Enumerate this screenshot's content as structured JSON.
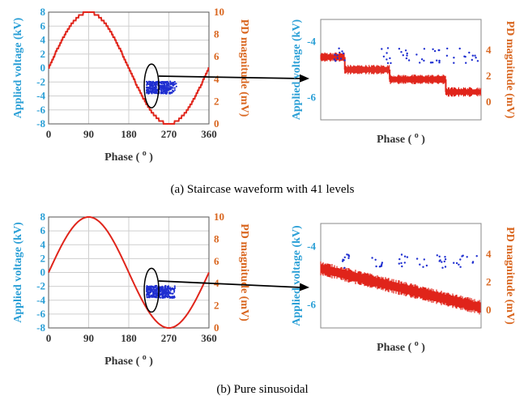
{
  "colors": {
    "voltage": "#e0251b",
    "pd": "#1f2fd0",
    "left_axis": "#2a9fd6",
    "right_axis": "#d9661f",
    "grid": "#cfcfcf",
    "arrow": "#000000"
  },
  "chart_data": [
    {
      "panel": "a",
      "type": "line",
      "caption": "(a) Staircase waveform with 41 levels",
      "xlabel": "Phase ( o )",
      "ylabel_left": "Applied voltage (kV)",
      "ylabel_right": "PD magnitude (mV)",
      "xlim": [
        0,
        360
      ],
      "ylim_left": [
        -8,
        8
      ],
      "ylim_right": [
        0,
        10
      ],
      "x_ticks": [
        "0",
        "90",
        "180",
        "270",
        "360"
      ],
      "y_left_ticks": [
        "8",
        "6",
        "4",
        "2",
        "0",
        "-2",
        "-4",
        "-6",
        "-8"
      ],
      "y_right_ticks": [
        "10",
        "8",
        "6",
        "4",
        "2",
        "0"
      ],
      "grid": true,
      "series": [
        {
          "kind": "staircase-sine",
          "amplitude_kv": 8,
          "levels": 41
        },
        {
          "kind": "pd-scatter",
          "phase_range": [
            220,
            290
          ],
          "magnitude_range_mv": [
            2.7,
            3.8
          ]
        }
      ],
      "zoom": {
        "ylim_left": [
          -6.8,
          -3.2
        ],
        "y_left_ticks": [
          "-4",
          "-6"
        ],
        "y_right_ticks": [
          "4",
          "2",
          "0"
        ],
        "xlabel": "Phase ( o )",
        "ylabel_left": "Applied voltage (kV)",
        "ylabel_right": "PD magnitude (mV)",
        "voltage_steps": [
          {
            "x_frac": [
              0.0,
              0.15
            ],
            "voltage_kv": -4.55
          },
          {
            "x_frac": [
              0.15,
              0.43
            ],
            "voltage_kv": -5.0
          },
          {
            "x_frac": [
              0.43,
              0.78
            ],
            "voltage_kv": -5.35
          },
          {
            "x_frac": [
              0.78,
              1.0
            ],
            "voltage_kv": -5.8
          }
        ],
        "pd_cluster_mv": [
          3.0,
          4.2
        ]
      }
    },
    {
      "panel": "b",
      "type": "line",
      "caption": "(b) Pure sinusoidal",
      "xlabel": "Phase ( o )",
      "ylabel_left": "Applied voltage (kV)",
      "ylabel_right": "PD magnitude (mV)",
      "xlim": [
        0,
        360
      ],
      "ylim_left": [
        -8,
        8
      ],
      "ylim_right": [
        0,
        10
      ],
      "x_ticks": [
        "0",
        "90",
        "180",
        "270",
        "360"
      ],
      "y_left_ticks": [
        "8",
        "6",
        "4",
        "2",
        "0",
        "-2",
        "-4",
        "-6",
        "-8"
      ],
      "y_right_ticks": [
        "10",
        "8",
        "6",
        "4",
        "2",
        "0"
      ],
      "grid": true,
      "series": [
        {
          "kind": "sine",
          "amplitude_kv": 8
        },
        {
          "kind": "pd-scatter",
          "phase_range": [
            220,
            290
          ],
          "magnitude_range_mv": [
            2.7,
            3.8
          ]
        }
      ],
      "zoom": {
        "ylim_left": [
          -6.8,
          -3.2
        ],
        "y_left_ticks": [
          "-4",
          "-6"
        ],
        "y_right_ticks": [
          "4",
          "2",
          "0"
        ],
        "xlabel": "Phase ( o )",
        "ylabel_left": "Applied voltage (kV)",
        "ylabel_right": "PD magnitude (mV)",
        "voltage_ramp_kv": [
          -4.75,
          -6.1
        ],
        "pd_cluster_mv": [
          3.0,
          4.0
        ]
      }
    }
  ]
}
